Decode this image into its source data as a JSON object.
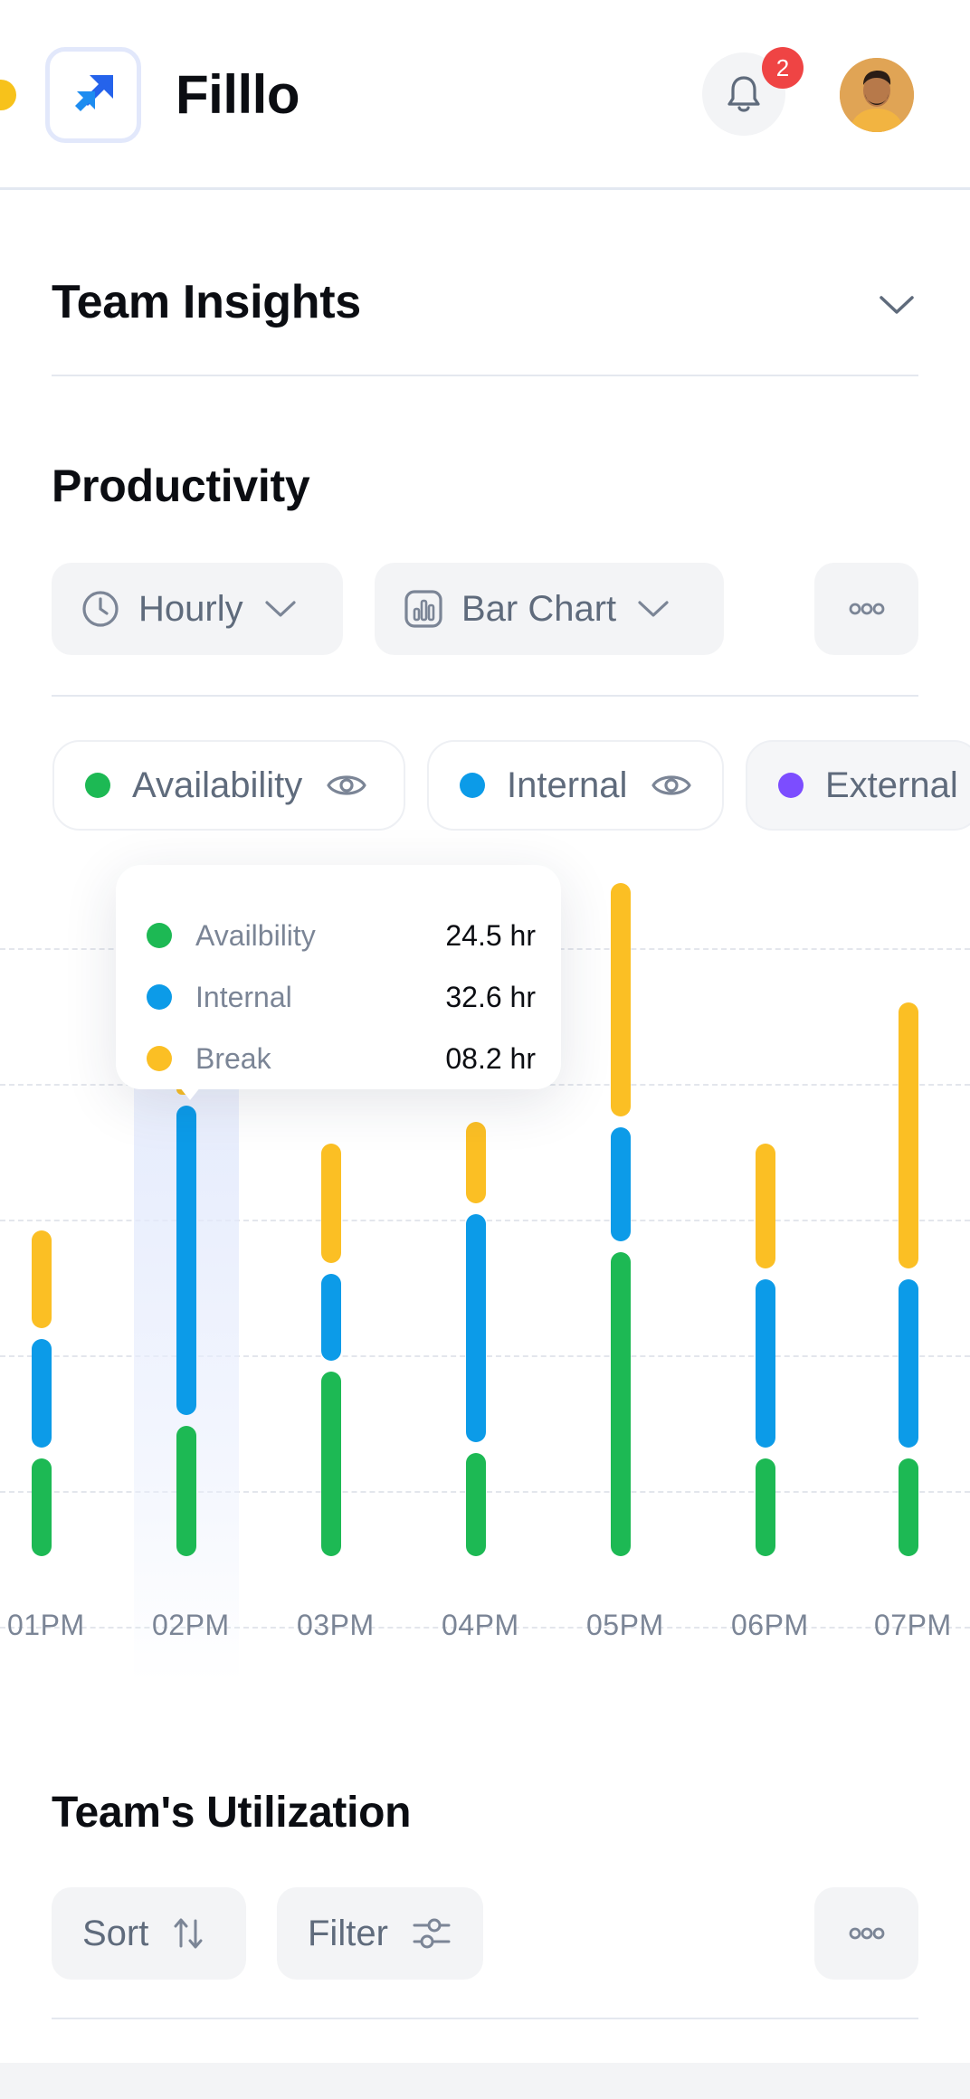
{
  "header": {
    "app_title": "Filllo",
    "notification_count": "2",
    "bell_icon": "bell-icon",
    "logo_icon": "double-arrow-logo-icon"
  },
  "insights": {
    "title": "Team Insights",
    "toggle_icon": "chevron-down-icon"
  },
  "productivity": {
    "title": "Productivity",
    "interval_label": "Hourly",
    "chart_type_label": "Bar Chart",
    "more_icon": "more-dots-icon"
  },
  "legend": [
    {
      "label": "Availability",
      "color": "#1db954"
    },
    {
      "label": "Internal",
      "color": "#0c9be8"
    },
    {
      "label": "External",
      "color": "#7c4dff"
    }
  ],
  "tooltip": {
    "rows": [
      {
        "label": "Availbility",
        "value": "24.5 hr",
        "color": "#1db954"
      },
      {
        "label": "Internal",
        "value": "32.6 hr",
        "color": "#0c9be8"
      },
      {
        "label": "Break",
        "value": "08.2 hr",
        "color": "#fbbf24"
      }
    ]
  },
  "chart_data": {
    "type": "bar",
    "title": "Productivity",
    "categories": [
      "01PM",
      "02PM",
      "03PM",
      "04PM",
      "05PM",
      "06PM",
      "07PM"
    ],
    "series": [
      {
        "name": "Availability",
        "color": "#1db954",
        "values": [
          1.8,
          2.4,
          3.4,
          1.9,
          5.6,
          1.8,
          1.8
        ]
      },
      {
        "name": "Internal",
        "color": "#0c9be8",
        "values": [
          2.0,
          5.7,
          1.6,
          4.2,
          2.1,
          3.1,
          3.1
        ]
      },
      {
        "name": "Break",
        "color": "#fbbf24",
        "values": [
          1.8,
          0.2,
          2.2,
          1.5,
          4.3,
          2.3,
          4.9
        ]
      }
    ],
    "ylim": [
      0,
      12
    ],
    "grid": true,
    "highlighted_category": "02PM"
  },
  "utilization": {
    "title": "Team's Utilization",
    "sort_label": "Sort",
    "filter_label": "Filter",
    "more_icon": "more-dots-icon"
  }
}
